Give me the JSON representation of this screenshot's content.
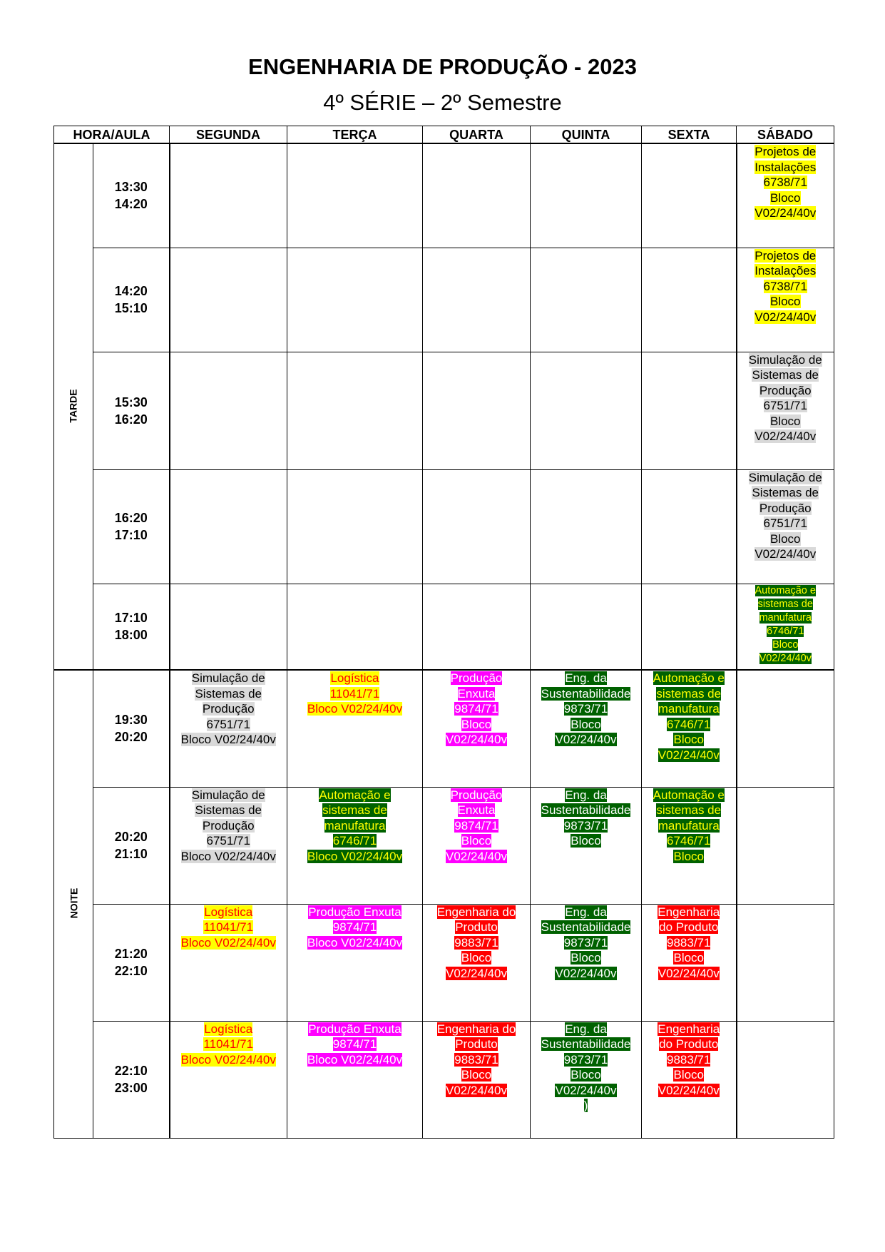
{
  "title": "ENGENHARIA DE PRODUÇÃO - 2023",
  "subtitle": "4º SÉRIE – 2º Semestre",
  "headers": [
    "HORA/AULA",
    "SEGUNDA",
    "TERÇA",
    "QUARTA",
    "QUINTA",
    "SEXTA",
    "SÁBADO"
  ],
  "periods": [
    "TARDE",
    "NOITE"
  ],
  "colors": {
    "yellow": "#ffff00",
    "gray": "#d9d9d9",
    "magenta": "#ff00ff",
    "dark_green": "#006100",
    "red": "#ff0000"
  },
  "rows": [
    {
      "time": [
        "13:30",
        "14:20"
      ],
      "cells": [
        null,
        null,
        null,
        null,
        null,
        {
          "style": "yellow",
          "lines": [
            "Projetos de",
            "Instalações",
            "6738/71",
            "Bloco",
            "V02/24/40v"
          ]
        }
      ]
    },
    {
      "time": [
        "14:20",
        "15:10"
      ],
      "cells": [
        null,
        null,
        null,
        null,
        null,
        {
          "style": "yellow",
          "lines": [
            "Projetos de",
            "Instalações",
            "6738/71",
            "Bloco",
            "V02/24/40v"
          ]
        }
      ]
    },
    {
      "time": [
        "15:30",
        "16:20"
      ],
      "cells": [
        null,
        null,
        null,
        null,
        null,
        {
          "style": "gray",
          "lines": [
            "Simulação de",
            "Sistemas de",
            "Produção",
            "6751/71",
            "Bloco",
            "V02/24/40v"
          ]
        }
      ]
    },
    {
      "time": [
        "16:20",
        "17:10"
      ],
      "cells": [
        null,
        null,
        null,
        null,
        null,
        {
          "style": "gray",
          "lines": [
            "Simulação de",
            "Sistemas de",
            "Produção",
            "6751/71",
            "Bloco",
            "V02/24/40v"
          ]
        }
      ]
    },
    {
      "time": [
        "17:10",
        "18:00"
      ],
      "cells": [
        null,
        null,
        null,
        null,
        null,
        {
          "style": "green",
          "small": true,
          "lines": [
            "Automação e",
            "sistemas de",
            "manufatura",
            "6746/71",
            "Bloco",
            "V02/24/40v"
          ]
        }
      ]
    },
    {
      "time": [
        "19:30",
        "20:20"
      ],
      "cells": [
        {
          "style": "gray",
          "lines": [
            "Simulação de",
            "Sistemas de",
            "Produção",
            "6751/71",
            "Bloco V02/24/40v"
          ]
        },
        {
          "style": "logi",
          "lines": [
            "Logística",
            "11041/71",
            "Bloco V02/24/40v"
          ]
        },
        {
          "style": "magenta",
          "lines": [
            "Produção",
            "Enxuta",
            "9874/71",
            "Bloco",
            "V02/24/40v"
          ]
        },
        {
          "style": "dkgreen",
          "lines": [
            "Eng. da",
            "Sustentabilidade",
            "9873/71",
            "Bloco",
            "V02/24/40v"
          ]
        },
        {
          "style": "green",
          "lines": [
            "Automação e",
            "sistemas de",
            "manufatura",
            "6746/71",
            "Bloco",
            "V02/24/40v"
          ]
        },
        null
      ]
    },
    {
      "time": [
        "20:20",
        "21:10"
      ],
      "cells": [
        {
          "style": "gray",
          "lines": [
            "Simulação de",
            "Sistemas de",
            "Produção",
            "6751/71",
            "Bloco V02/24/40v"
          ]
        },
        {
          "style": "green",
          "lines": [
            "Automação e",
            "sistemas de",
            "manufatura",
            "6746/71",
            "Bloco V02/24/40v"
          ]
        },
        {
          "style": "magenta",
          "lines": [
            "Produção",
            "Enxuta",
            "9874/71",
            "Bloco",
            "V02/24/40v"
          ]
        },
        {
          "style": "dkgreen",
          "lines": [
            "Eng. da",
            "Sustentabilidade",
            "9873/71",
            "Bloco"
          ]
        },
        {
          "style": "green",
          "lines": [
            "Automação e",
            "sistemas de",
            "manufatura",
            "6746/71",
            "Bloco"
          ]
        },
        null
      ]
    },
    {
      "time": [
        "21:20",
        "22:10"
      ],
      "cells": [
        {
          "style": "logi",
          "lines": [
            "Logística",
            "11041/71",
            "Bloco V02/24/40v"
          ]
        },
        {
          "style": "magenta",
          "lines": [
            "Produção Enxuta",
            "9874/71",
            "Bloco V02/24/40v"
          ]
        },
        {
          "style": "red",
          "lines": [
            "Engenharia do",
            "Produto",
            "9883/71",
            "Bloco",
            "V02/24/40v"
          ]
        },
        {
          "style": "dkgreen",
          "lines": [
            "Eng. da",
            "Sustentabilidade",
            "9873/71",
            "Bloco",
            "V02/24/40v"
          ]
        },
        {
          "style": "red",
          "lines": [
            "Engenharia",
            "do Produto",
            "9883/71",
            "Bloco",
            "V02/24/40v"
          ]
        },
        null
      ]
    },
    {
      "time": [
        "22:10",
        "23:00"
      ],
      "cells": [
        {
          "style": "logi",
          "lines": [
            "Logística",
            "11041/71",
            "Bloco V02/24/40v"
          ]
        },
        {
          "style": "magenta",
          "lines": [
            "Produção Enxuta",
            "9874/71",
            "Bloco V02/24/40v"
          ]
        },
        {
          "style": "red",
          "lines": [
            "Engenharia do",
            "Produto",
            "9883/71",
            "Bloco",
            "V02/24/40v"
          ]
        },
        {
          "style": "dkgreen",
          "lines": [
            "Eng. da",
            "Sustentabilidade",
            "9873/71",
            "Bloco",
            "V02/24/40v",
            ")"
          ]
        },
        {
          "style": "red",
          "lines": [
            "Engenharia",
            "do Produto",
            "9883/71",
            "Bloco",
            "V02/24/40v"
          ]
        },
        null
      ]
    }
  ]
}
